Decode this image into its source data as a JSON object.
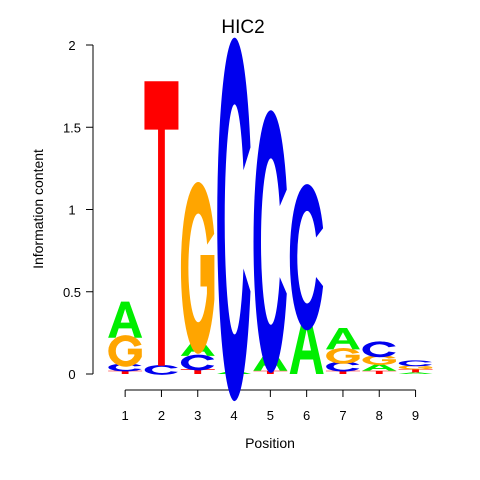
{
  "chart_data": {
    "type": "sequence-logo",
    "title": "HIC2",
    "xlabel": "Position",
    "ylabel": "Information content",
    "ylim": [
      0,
      2
    ],
    "yticks": [
      "0",
      "0.5",
      "1",
      "1.5",
      "2"
    ],
    "xticks": [
      "1",
      "2",
      "3",
      "4",
      "5",
      "6",
      "7",
      "8",
      "9"
    ],
    "colors": {
      "A": "#00ee00",
      "C": "#0000ee",
      "G": "#ffa500",
      "T": "#ff0000"
    },
    "positions": [
      {
        "pos": "1",
        "stack": [
          {
            "letter": "T",
            "bits": 0.02
          },
          {
            "letter": "C",
            "bits": 0.04
          },
          {
            "letter": "G",
            "bits": 0.16
          },
          {
            "letter": "A",
            "bits": 0.22
          }
        ]
      },
      {
        "pos": "2",
        "stack": [
          {
            "letter": "C",
            "bits": 0.05
          },
          {
            "letter": "T",
            "bits": 1.73
          }
        ]
      },
      {
        "pos": "3",
        "stack": [
          {
            "letter": "T",
            "bits": 0.03
          },
          {
            "letter": "C",
            "bits": 0.08
          },
          {
            "letter": "A",
            "bits": 0.1
          },
          {
            "letter": "G",
            "bits": 0.87
          }
        ]
      },
      {
        "pos": "4",
        "stack": [
          {
            "letter": "A",
            "bits": 0.02
          },
          {
            "letter": "C",
            "bits": 1.84
          }
        ]
      },
      {
        "pos": "5",
        "stack": [
          {
            "letter": "T",
            "bits": 0.02
          },
          {
            "letter": "A",
            "bits": 0.12
          },
          {
            "letter": "C",
            "bits": 1.33
          }
        ]
      },
      {
        "pos": "6",
        "stack": [
          {
            "letter": "A",
            "bits": 0.34
          },
          {
            "letter": "C",
            "bits": 0.74
          }
        ]
      },
      {
        "pos": "7",
        "stack": [
          {
            "letter": "T",
            "bits": 0.02
          },
          {
            "letter": "C",
            "bits": 0.05
          },
          {
            "letter": "G",
            "bits": 0.08
          },
          {
            "letter": "A",
            "bits": 0.13
          }
        ]
      },
      {
        "pos": "8",
        "stack": [
          {
            "letter": "T",
            "bits": 0.02
          },
          {
            "letter": "A",
            "bits": 0.04
          },
          {
            "letter": "G",
            "bits": 0.05
          },
          {
            "letter": "C",
            "bits": 0.08
          }
        ]
      },
      {
        "pos": "9",
        "stack": [
          {
            "letter": "A",
            "bits": 0.01
          },
          {
            "letter": "T",
            "bits": 0.02
          },
          {
            "letter": "G",
            "bits": 0.02
          },
          {
            "letter": "C",
            "bits": 0.03
          }
        ]
      }
    ]
  }
}
